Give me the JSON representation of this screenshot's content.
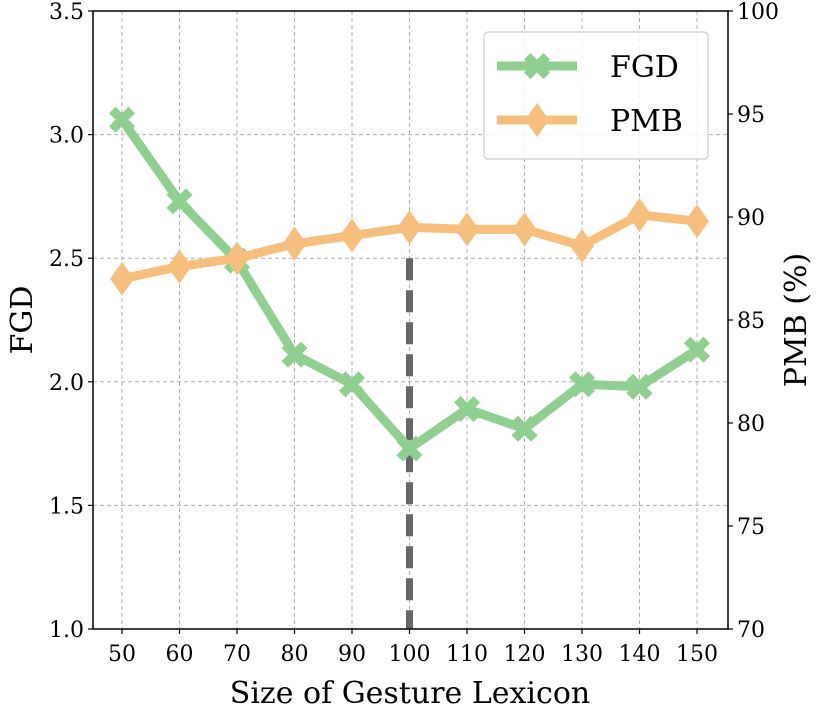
{
  "chart_data": {
    "type": "line",
    "x": [
      50,
      60,
      70,
      80,
      90,
      100,
      110,
      120,
      130,
      140,
      150
    ],
    "xlabel": "Size of Gesture Lexicon",
    "ylabel_left": "FGD",
    "ylabel_right": "PMB (%)",
    "ylim_left": [
      1.0,
      3.5
    ],
    "ylim_right": [
      70,
      100
    ],
    "yticks_left": [
      "1.0",
      "1.5",
      "2.0",
      "2.5",
      "3.0",
      "3.5"
    ],
    "yticks_right": [
      "70",
      "75",
      "80",
      "85",
      "90",
      "95",
      "100"
    ],
    "grid": true,
    "legend_position": "top-right",
    "highlight_x": 100,
    "series": [
      {
        "name": "FGD",
        "axis": "left",
        "marker": "X",
        "color": "#8fcf8f",
        "values": [
          3.06,
          2.73,
          2.49,
          2.11,
          1.99,
          1.73,
          1.89,
          1.81,
          1.99,
          1.98,
          2.13
        ]
      },
      {
        "name": "PMB",
        "axis": "right",
        "marker": "diamond",
        "color": "#f7bf7e",
        "values": [
          87.0,
          87.6,
          88.0,
          88.7,
          89.1,
          89.5,
          89.4,
          89.4,
          88.6,
          90.1,
          89.8
        ]
      }
    ]
  }
}
